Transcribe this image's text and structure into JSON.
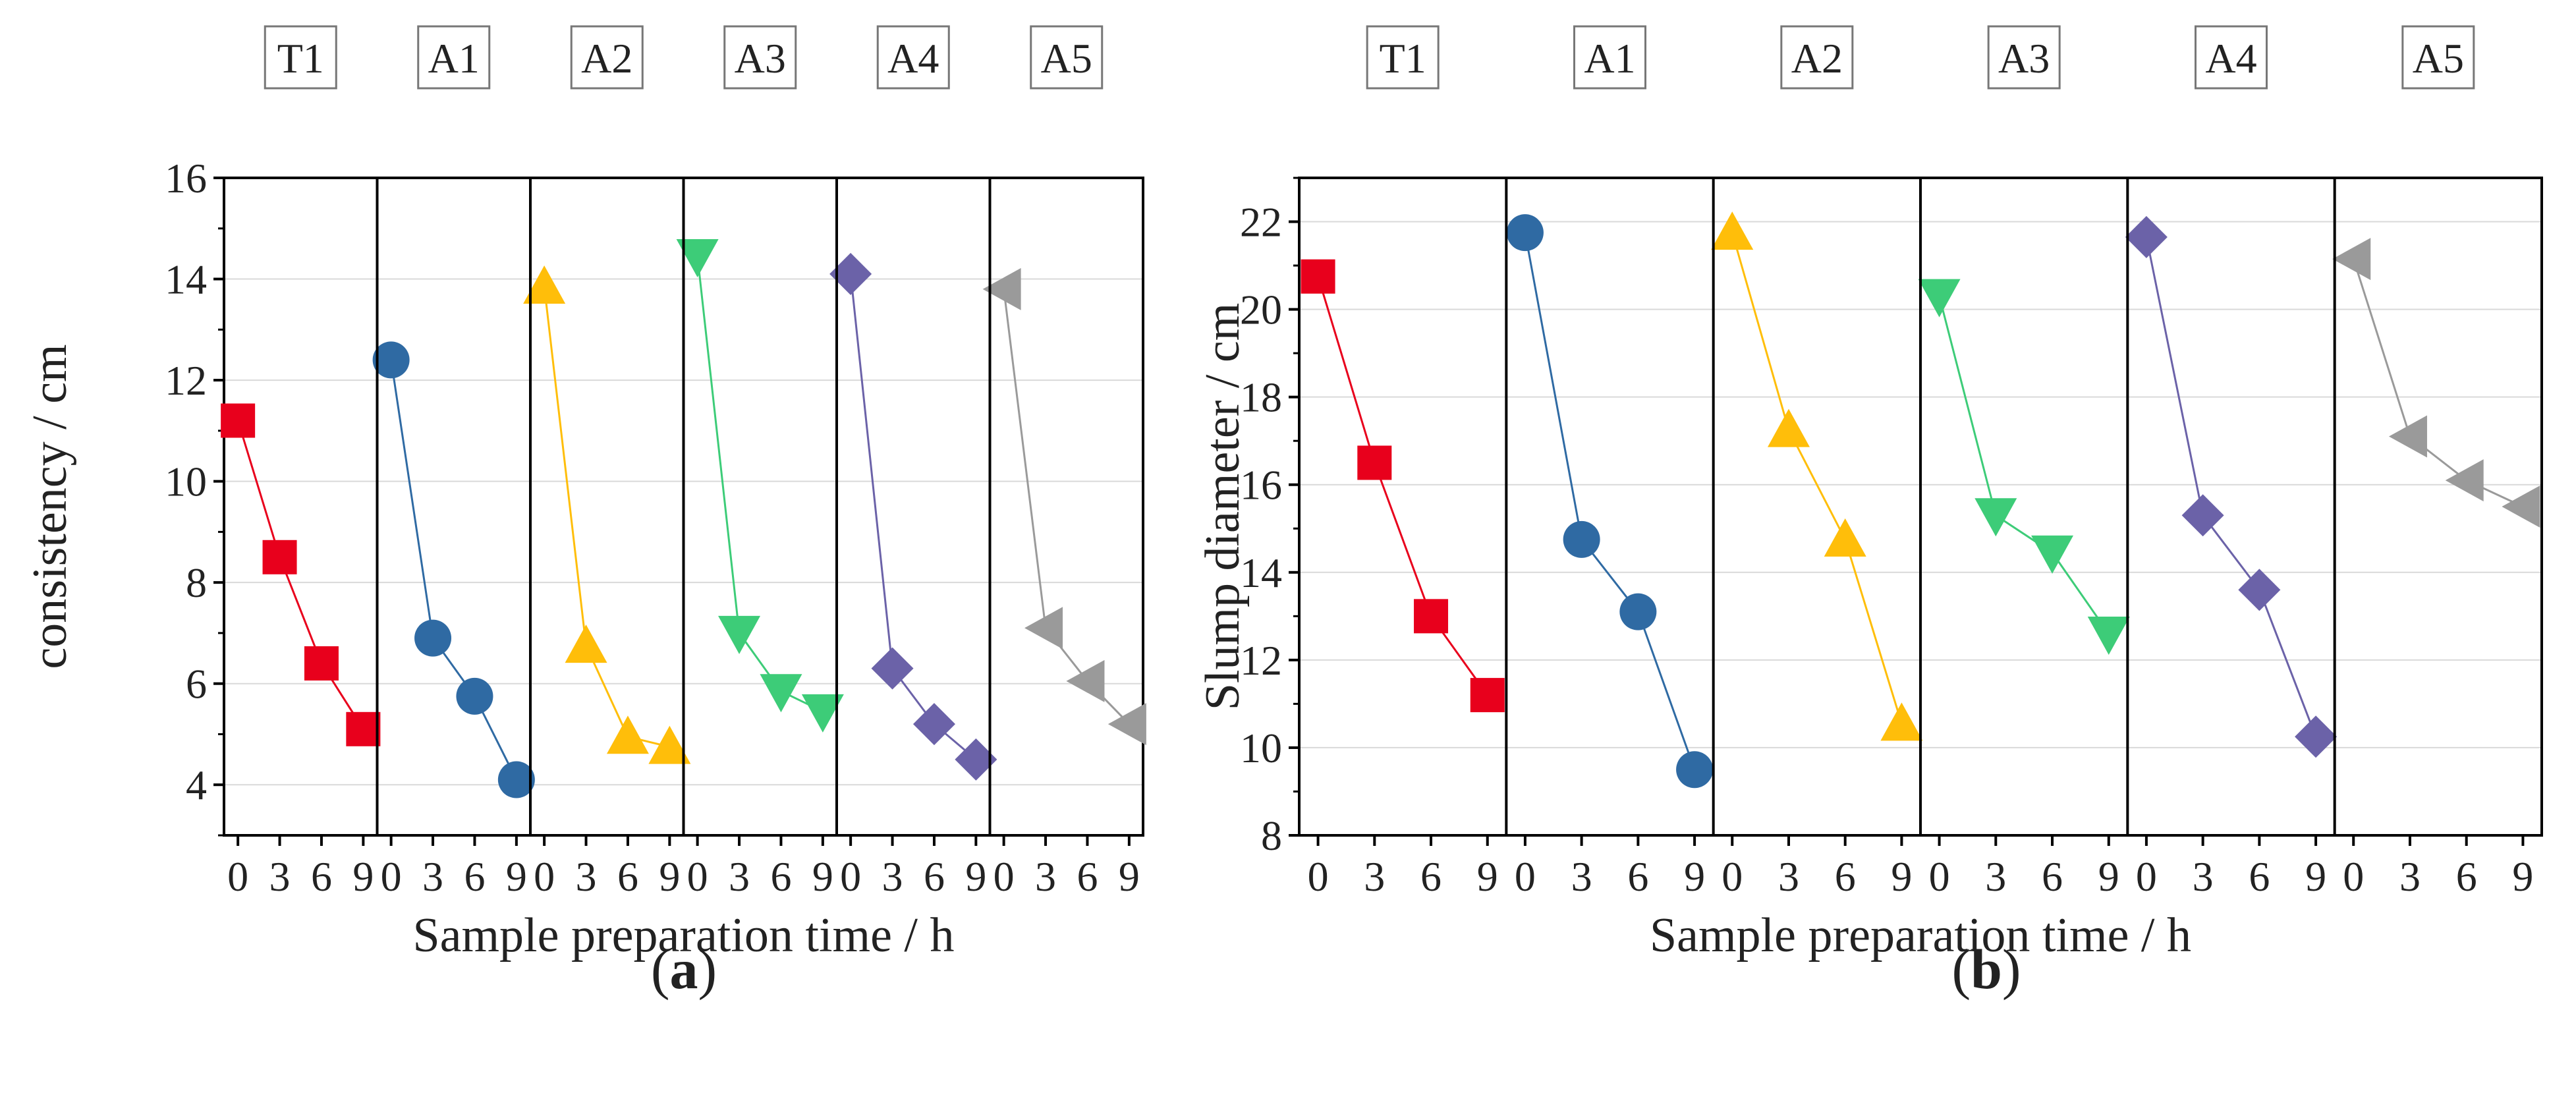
{
  "chart_data": [
    {
      "type": "line",
      "panel_label": "(a)",
      "ylabel": "consistency / cm",
      "xlabel": "Sample preparation time / h",
      "ylim": [
        3,
        16
      ],
      "yticks": [
        4,
        6,
        8,
        10,
        12,
        14,
        16
      ],
      "x": [
        0,
        3,
        6,
        9
      ],
      "grid": true,
      "series": [
        {
          "name": "T1",
          "color": "#e8001c",
          "marker": "square",
          "values": [
            11.2,
            8.5,
            6.4,
            5.1
          ]
        },
        {
          "name": "A1",
          "color": "#2f6aa3",
          "marker": "circle",
          "values": [
            12.4,
            6.9,
            5.75,
            4.1
          ]
        },
        {
          "name": "A2",
          "color": "#ffbe0a",
          "marker": "triangle-up",
          "values": [
            13.85,
            6.75,
            4.95,
            4.75
          ]
        },
        {
          "name": "A3",
          "color": "#3dcc78",
          "marker": "triangle-down",
          "values": [
            14.45,
            7.0,
            5.85,
            5.45
          ]
        },
        {
          "name": "A4",
          "color": "#6b62a8",
          "marker": "diamond",
          "values": [
            14.1,
            6.3,
            5.2,
            4.5
          ]
        },
        {
          "name": "A5",
          "color": "#9a9a9a",
          "marker": "triangle-left",
          "values": [
            13.8,
            7.1,
            6.05,
            5.2
          ]
        }
      ]
    },
    {
      "type": "line",
      "panel_label": "(b)",
      "ylabel": "Slump diameter / cm",
      "xlabel": "Sample preparation time / h",
      "ylim": [
        8,
        23
      ],
      "yticks": [
        8,
        10,
        12,
        14,
        16,
        18,
        20,
        22
      ],
      "x": [
        0,
        3,
        6,
        9
      ],
      "grid": true,
      "series": [
        {
          "name": "T1",
          "color": "#e8001c",
          "marker": "square",
          "values": [
            20.75,
            16.5,
            13.0,
            11.2
          ]
        },
        {
          "name": "A1",
          "color": "#2f6aa3",
          "marker": "circle",
          "values": [
            21.75,
            14.75,
            13.1,
            9.5
          ]
        },
        {
          "name": "A2",
          "color": "#ffbe0a",
          "marker": "triangle-up",
          "values": [
            21.75,
            17.25,
            14.75,
            10.55
          ]
        },
        {
          "name": "A3",
          "color": "#3dcc78",
          "marker": "triangle-down",
          "values": [
            20.3,
            15.3,
            14.45,
            12.6
          ]
        },
        {
          "name": "A4",
          "color": "#6b62a8",
          "marker": "diamond",
          "values": [
            21.65,
            15.3,
            13.6,
            10.25
          ]
        },
        {
          "name": "A5",
          "color": "#9a9a9a",
          "marker": "triangle-left",
          "values": [
            21.15,
            17.1,
            16.1,
            15.5
          ]
        }
      ]
    }
  ]
}
